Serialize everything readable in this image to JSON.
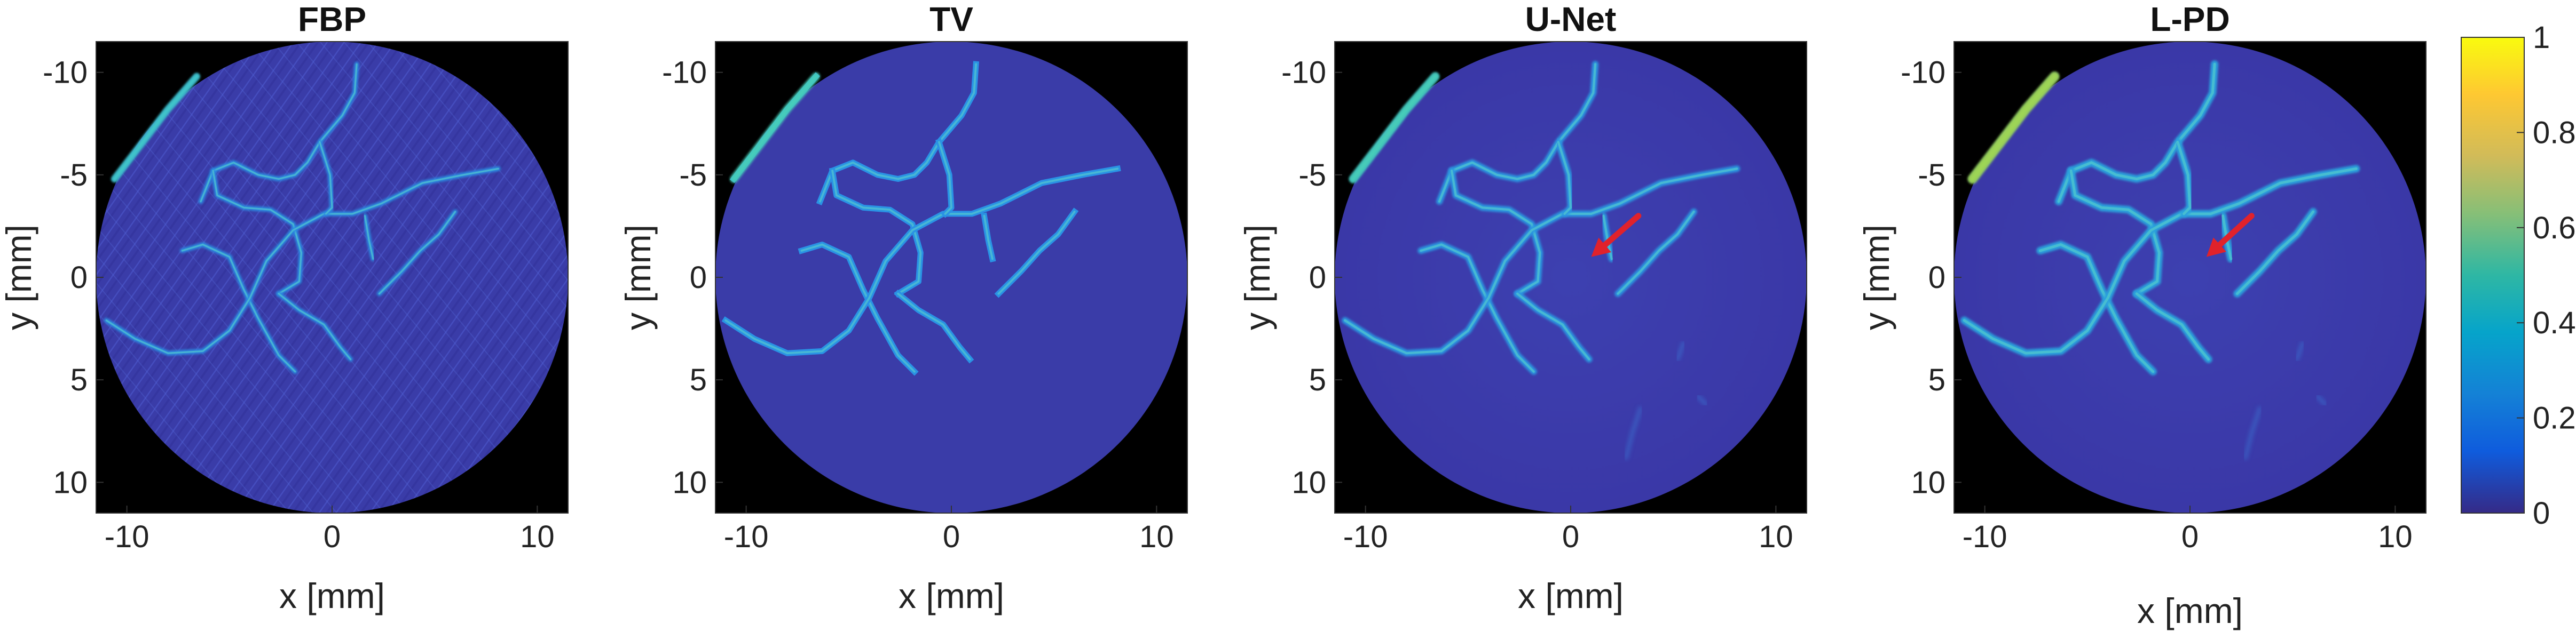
{
  "figure": {
    "colormap": "parula",
    "colors": {
      "background": "#000000",
      "disc_fill": "#3a3ca8",
      "vessel": "#2a8fe0",
      "vessel_bright": "#3fd0c0",
      "arrow": "#e0222b"
    },
    "panels": [
      {
        "id": "fbp",
        "title": "FBP",
        "xlabel": "x [mm]",
        "ylabel": "y [mm]",
        "xticks": [
          "-10",
          "0",
          "10"
        ],
        "yticks": [
          "-10",
          "-5",
          "0",
          "5",
          "10"
        ],
        "arrow": null
      },
      {
        "id": "tv",
        "title": "TV",
        "xlabel": "x [mm]",
        "ylabel": "y [mm]",
        "xticks": [
          "-10",
          "0",
          "10"
        ],
        "yticks": [
          "-10",
          "-5",
          "0",
          "5",
          "10"
        ],
        "arrow": null
      },
      {
        "id": "unet",
        "title": "U-Net",
        "xlabel": "x [mm]",
        "ylabel": "y [mm]",
        "xticks": [
          "-10",
          "0",
          "10"
        ],
        "yticks": [
          "-10",
          "-5",
          "0",
          "5",
          "10"
        ],
        "arrow": {
          "tip_x": 1.0,
          "tip_y": -1.0,
          "tail_x": 3.3,
          "tail_y": -3.0
        }
      },
      {
        "id": "lpd",
        "title": "L-PD",
        "xlabel": "x [mm]",
        "ylabel": "y [mm]",
        "xticks": [
          "-10",
          "0",
          "10"
        ],
        "yticks": [
          "-10",
          "-5",
          "0",
          "5",
          "10"
        ],
        "arrow": {
          "tip_x": 0.8,
          "tip_y": -1.0,
          "tail_x": 3.0,
          "tail_y": -3.0
        }
      }
    ],
    "colorbar": {
      "ticks": [
        "1",
        "0.8",
        "0.6",
        "0.4",
        "0.2",
        "0"
      ],
      "range": [
        0,
        1
      ]
    }
  }
}
